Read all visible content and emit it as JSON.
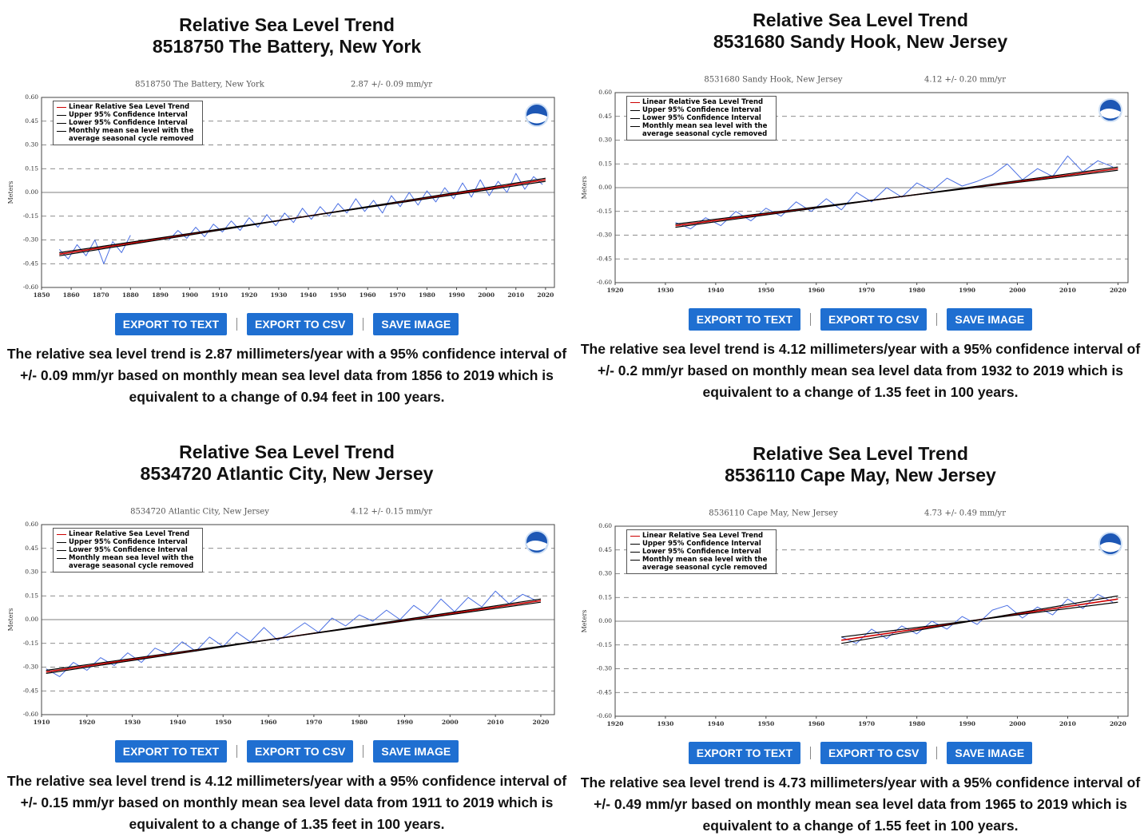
{
  "chart_data": [
    {
      "type": "line",
      "title": "8518750 The Battery, New York",
      "subtitle": "2.87 +/- 0.09 mm/yr",
      "y_label": "Meters",
      "xlim": [
        1850,
        2023
      ],
      "xticks": [
        1850,
        1860,
        1870,
        1880,
        1890,
        1900,
        1910,
        1920,
        1930,
        1940,
        1950,
        1960,
        1970,
        1980,
        1990,
        2000,
        2010,
        2020
      ],
      "ylim": [
        -0.6,
        0.6
      ],
      "yticks": [
        {
          "value": -0.6,
          "label": "-0.60"
        },
        -0.45,
        {
          "value": -0.3,
          "label": "-0.30"
        },
        -0.15,
        {
          "value": 0,
          "label": "0.00"
        },
        0.15,
        {
          "value": 0.3,
          "label": "0.30"
        },
        0.45,
        {
          "value": 0.6,
          "label": "0.60"
        }
      ],
      "grid": true,
      "legend": "upper left",
      "series": [
        {
          "name": "Linear Relative Sea Level Trend",
          "color": "#cc0000",
          "x": [
            1856,
            2020
          ],
          "values": [
            -0.39,
            0.08
          ]
        },
        {
          "name": "Upper 95% Confidence Interval",
          "color": "#000000",
          "x": [
            1856,
            2020
          ],
          "values": [
            -0.4,
            0.09
          ]
        },
        {
          "name": "Lower 95% Confidence Interval",
          "color": "#000000",
          "x": [
            1856,
            2020
          ],
          "values": [
            -0.38,
            0.07
          ]
        },
        {
          "name": "Monthly mean sea level with the average seasonal cycle removed",
          "color": "#4a6fe3",
          "x": [
            1856,
            1859,
            1862,
            1865,
            1868,
            1871,
            1874,
            1877,
            1880,
            1886,
            1893,
            1896,
            1899,
            1902,
            1905,
            1908,
            1911,
            1914,
            1917,
            1920,
            1923,
            1926,
            1929,
            1932,
            1935,
            1938,
            1941,
            1944,
            1947,
            1950,
            1953,
            1956,
            1959,
            1962,
            1965,
            1968,
            1971,
            1974,
            1977,
            1980,
            1983,
            1986,
            1989,
            1992,
            1995,
            1998,
            2001,
            2004,
            2007,
            2010,
            2013,
            2016,
            2019
          ],
          "values": [
            -0.36,
            -0.42,
            -0.33,
            -0.4,
            -0.3,
            -0.45,
            -0.31,
            -0.38,
            -0.27,
            null,
            -0.3,
            -0.24,
            -0.29,
            -0.22,
            -0.28,
            -0.2,
            -0.25,
            -0.18,
            -0.24,
            -0.16,
            -0.22,
            -0.14,
            -0.21,
            -0.13,
            -0.19,
            -0.1,
            -0.17,
            -0.09,
            -0.15,
            -0.07,
            -0.13,
            -0.04,
            -0.12,
            -0.05,
            -0.13,
            -0.02,
            -0.09,
            0,
            -0.08,
            0.01,
            -0.06,
            0.03,
            -0.04,
            0.06,
            -0.03,
            0.08,
            -0.02,
            0.07,
            0,
            0.12,
            0.02,
            0.1,
            0.05
          ]
        }
      ]
    },
    {
      "type": "line",
      "title": "8531680 Sandy Hook, New Jersey",
      "subtitle": "4.12 +/- 0.20 mm/yr",
      "y_label": "Meters",
      "xlim": [
        1920,
        2022
      ],
      "xticks": [
        1920,
        1930,
        1940,
        1950,
        1960,
        1970,
        1980,
        1990,
        2000,
        2010,
        2020
      ],
      "ylim": [
        -0.6,
        0.6
      ],
      "yticks": [
        {
          "value": -0.6,
          "label": "-0.60"
        },
        -0.45,
        {
          "value": -0.3,
          "label": "-0.30"
        },
        -0.15,
        {
          "value": 0,
          "label": "0.00"
        },
        0.15,
        {
          "value": 0.3,
          "label": "0.30"
        },
        0.45,
        {
          "value": 0.6,
          "label": "0.60"
        }
      ],
      "grid": true,
      "legend": "upper left",
      "series": [
        {
          "name": "Linear Relative Sea Level Trend",
          "color": "#cc0000",
          "x": [
            1932,
            2020
          ],
          "values": [
            -0.24,
            0.12
          ]
        },
        {
          "name": "Upper 95% Confidence Interval",
          "color": "#000000",
          "x": [
            1932,
            2020
          ],
          "values": [
            -0.25,
            0.13
          ]
        },
        {
          "name": "Lower 95% Confidence Interval",
          "color": "#000000",
          "x": [
            1932,
            2020
          ],
          "values": [
            -0.23,
            0.11
          ]
        },
        {
          "name": "Monthly mean sea level with the average seasonal cycle removed",
          "color": "#4a6fe3",
          "x": [
            1932,
            1935,
            1938,
            1941,
            1944,
            1947,
            1950,
            1953,
            1956,
            1959,
            1962,
            1965,
            1968,
            1971,
            1974,
            1977,
            1980,
            1983,
            1986,
            1989,
            1992,
            1995,
            1998,
            2001,
            2004,
            2007,
            2010,
            2013,
            2016,
            2019
          ],
          "values": [
            -0.22,
            -0.26,
            -0.19,
            -0.24,
            -0.15,
            -0.21,
            -0.13,
            -0.18,
            -0.09,
            -0.15,
            -0.07,
            -0.14,
            -0.03,
            -0.09,
            0,
            -0.06,
            0.03,
            -0.02,
            0.06,
            0.01,
            0.04,
            0.08,
            0.15,
            0.05,
            0.12,
            0.07,
            0.2,
            0.1,
            0.17,
            0.13
          ]
        }
      ]
    },
    {
      "type": "line",
      "title": "8534720 Atlantic City, New Jersey",
      "subtitle": "4.12 +/- 0.15 mm/yr",
      "y_label": "Meters",
      "xlim": [
        1910,
        2023
      ],
      "xticks": [
        1910,
        1920,
        1930,
        1940,
        1950,
        1960,
        1970,
        1980,
        1990,
        2000,
        2010,
        2020
      ],
      "ylim": [
        -0.6,
        0.6
      ],
      "yticks": [
        {
          "value": -0.6,
          "label": "-0.60"
        },
        -0.45,
        {
          "value": -0.3,
          "label": "-0.30"
        },
        -0.15,
        {
          "value": 0,
          "label": "0.00"
        },
        0.15,
        {
          "value": 0.3,
          "label": "0.30"
        },
        0.45,
        {
          "value": 0.6,
          "label": "0.60"
        }
      ],
      "grid": true,
      "legend": "upper left",
      "series": [
        {
          "name": "Linear Relative Sea Level Trend",
          "color": "#cc0000",
          "x": [
            1911,
            2020
          ],
          "values": [
            -0.33,
            0.12
          ]
        },
        {
          "name": "Upper 95% Confidence Interval",
          "color": "#000000",
          "x": [
            1911,
            2020
          ],
          "values": [
            -0.34,
            0.13
          ]
        },
        {
          "name": "Lower 95% Confidence Interval",
          "color": "#000000",
          "x": [
            1911,
            2020
          ],
          "values": [
            -0.32,
            0.11
          ]
        },
        {
          "name": "Monthly mean sea level with the average seasonal cycle removed",
          "color": "#4a6fe3",
          "x": [
            1911,
            1914,
            1917,
            1920,
            1923,
            1926,
            1929,
            1932,
            1935,
            1938,
            1941,
            1944,
            1947,
            1950,
            1953,
            1956,
            1959,
            1962,
            1965,
            1968,
            1971,
            1974,
            1977,
            1980,
            1983,
            1986,
            1989,
            1992,
            1995,
            1998,
            2001,
            2004,
            2007,
            2010,
            2013,
            2016,
            2019
          ],
          "values": [
            -0.31,
            -0.36,
            -0.27,
            -0.32,
            -0.24,
            -0.29,
            -0.21,
            -0.27,
            -0.18,
            -0.22,
            -0.14,
            -0.2,
            -0.11,
            -0.17,
            -0.08,
            -0.14,
            -0.05,
            -0.13,
            -0.08,
            -0.02,
            -0.08,
            0.01,
            -0.04,
            0.03,
            -0.01,
            0.06,
            0,
            0.09,
            0.03,
            0.13,
            0.05,
            0.14,
            0.08,
            0.18,
            0.1,
            0.16,
            0.12
          ]
        }
      ]
    },
    {
      "type": "line",
      "title": "8536110 Cape May, New Jersey",
      "subtitle": "4.73 +/- 0.49 mm/yr",
      "y_label": "Meters",
      "xlim": [
        1920,
        2022
      ],
      "xticks": [
        1920,
        1930,
        1940,
        1950,
        1960,
        1970,
        1980,
        1990,
        2000,
        2010,
        2020
      ],
      "ylim": [
        -0.6,
        0.6
      ],
      "yticks": [
        {
          "value": -0.6,
          "label": "-0.60"
        },
        -0.45,
        {
          "value": -0.3,
          "label": "-0.30"
        },
        -0.15,
        {
          "value": 0,
          "label": "0.00"
        },
        0.15,
        {
          "value": 0.3,
          "label": "0.30"
        },
        0.45,
        {
          "value": 0.6,
          "label": "0.60"
        }
      ],
      "grid": true,
      "legend": "upper left",
      "series": [
        {
          "name": "Linear Relative Sea Level Trend",
          "color": "#cc0000",
          "x": [
            1965,
            2020
          ],
          "values": [
            -0.12,
            0.14
          ]
        },
        {
          "name": "Upper 95% Confidence Interval",
          "color": "#000000",
          "x": [
            1965,
            2020
          ],
          "values": [
            -0.14,
            0.16
          ]
        },
        {
          "name": "Lower 95% Confidence Interval",
          "color": "#000000",
          "x": [
            1965,
            2020
          ],
          "values": [
            -0.1,
            0.12
          ]
        },
        {
          "name": "Monthly mean sea level with the average seasonal cycle removed",
          "color": "#4a6fe3",
          "x": [
            1965,
            1968,
            1971,
            1974,
            1977,
            1980,
            1983,
            1986,
            1989,
            1992,
            1995,
            1998,
            2001,
            2004,
            2007,
            2010,
            2013,
            2016,
            2019
          ],
          "values": [
            -0.1,
            -0.14,
            -0.05,
            -0.11,
            -0.03,
            -0.08,
            0,
            -0.05,
            0.03,
            -0.02,
            0.07,
            0.1,
            0.02,
            0.09,
            0.04,
            0.14,
            0.08,
            0.17,
            0.12
          ]
        }
      ]
    }
  ],
  "panels": [
    {
      "heading": [
        "Relative Sea Level Trend",
        "8518750 The Battery, New York"
      ],
      "buttons": [
        "EXPORT TO TEXT",
        "EXPORT TO CSV",
        "SAVE IMAGE"
      ],
      "description": "The relative sea level trend is 2.87 millimeters/year with a 95% confidence interval of +/- 0.09 mm/yr based on monthly mean sea level data from 1856 to 2019 which is equivalent to a change of 0.94 feet in 100 years."
    },
    {
      "heading": [
        "Relative Sea Level Trend",
        "8531680 Sandy Hook, New Jersey"
      ],
      "buttons": [
        "EXPORT TO TEXT",
        "EXPORT TO CSV",
        "SAVE IMAGE"
      ],
      "description": "The relative sea level trend is 4.12 millimeters/year with a 95% confidence interval of +/- 0.2 mm/yr based on monthly mean sea level data from 1932 to 2019 which is equivalent to a change of 1.35 feet in 100 years."
    },
    {
      "heading": [
        "Relative Sea Level Trend",
        "8534720 Atlantic City, New Jersey"
      ],
      "buttons": [
        "EXPORT TO TEXT",
        "EXPORT TO CSV",
        "SAVE IMAGE"
      ],
      "description": "The relative sea level trend is 4.12 millimeters/year with a 95% confidence interval of +/- 0.15 mm/yr based on monthly mean sea level data from 1911 to 2019 which is equivalent to a change of 1.35 feet in 100 years."
    },
    {
      "heading": [
        "Relative Sea Level Trend",
        "8536110 Cape May, New Jersey"
      ],
      "buttons": [
        "EXPORT TO TEXT",
        "EXPORT TO CSV",
        "SAVE IMAGE"
      ],
      "description": "The relative sea level trend is 4.73 millimeters/year with a 95% confidence interval of +/- 0.49 mm/yr based on monthly mean sea level data from 1965 to 2019 which is equivalent to a change of 1.55 feet in 100 years."
    }
  ]
}
